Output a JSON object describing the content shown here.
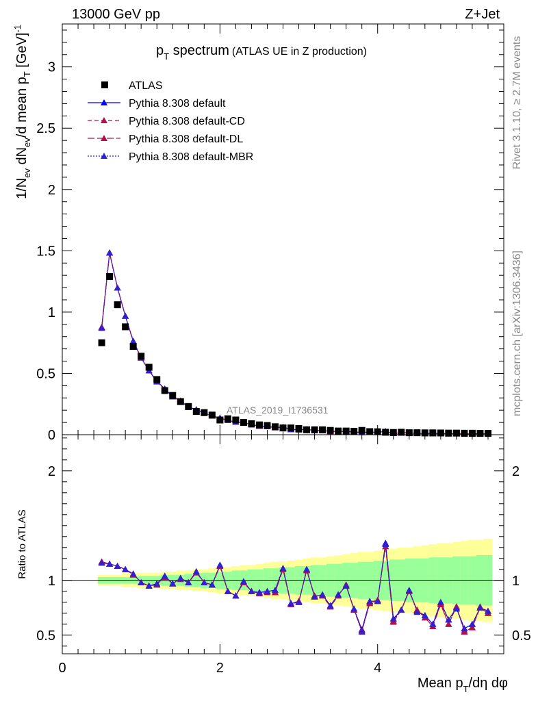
{
  "header": {
    "left": "13000 GeV pp",
    "right": "Z+Jet"
  },
  "side_labels": {
    "rivet": "Rivet 3.1.10, ≥ 2.7M events",
    "mcplots": "mcplots.cern.ch [arXiv:1306.3436]"
  },
  "chart_data": {
    "type": "scatter",
    "title_main": "p",
    "title_sub": "T",
    "title_rest": " spectrum",
    "title_paren": "(ATLAS UE in Z production)",
    "analysis_id": "ATLAS_2019_I1736531",
    "ylabel_upper": "1/N_ev dN_ev/d mean p_T [GeV]^-1",
    "ylabel_lower": "Ratio to ATLAS",
    "xlabel": "Mean p_T/dη dφ",
    "xlim": [
      0,
      5.6
    ],
    "ylim_upper": [
      0,
      3.35
    ],
    "ylim_lower": [
      0.33,
      2.33
    ],
    "x_ticks": [
      "0",
      "2",
      "4"
    ],
    "y_ticks_upper": [
      "0",
      "0.5",
      "1",
      "1.5",
      "2",
      "2.5",
      "3"
    ],
    "y_ticks_lower": [
      "0.5",
      "1",
      "2"
    ],
    "x": [
      0.5,
      0.6,
      0.7,
      0.8,
      0.9,
      1.0,
      1.1,
      1.2,
      1.3,
      1.4,
      1.5,
      1.6,
      1.7,
      1.8,
      1.9,
      2.0,
      2.1,
      2.2,
      2.3,
      2.4,
      2.5,
      2.6,
      2.7,
      2.8,
      2.9,
      3.0,
      3.1,
      3.2,
      3.3,
      3.4,
      3.5,
      3.6,
      3.7,
      3.8,
      3.9,
      4.0,
      4.1,
      4.2,
      4.3,
      4.4,
      4.5,
      4.6,
      4.7,
      4.8,
      4.9,
      5.0,
      5.1,
      5.2,
      5.3,
      5.4
    ],
    "atlas": [
      0.75,
      1.29,
      1.06,
      0.88,
      0.72,
      0.64,
      0.55,
      0.45,
      0.36,
      0.32,
      0.27,
      0.23,
      0.19,
      0.18,
      0.16,
      0.12,
      0.13,
      0.12,
      0.1,
      0.09,
      0.08,
      0.075,
      0.065,
      0.055,
      0.055,
      0.05,
      0.04,
      0.04,
      0.04,
      0.035,
      0.03,
      0.03,
      0.028,
      0.035,
      0.025,
      0.024,
      0.02,
      0.018,
      0.02,
      0.016,
      0.016,
      0.015,
      0.015,
      0.014,
      0.013,
      0.013,
      0.012,
      0.012,
      0.011,
      0.011
    ],
    "series": [
      {
        "name": "Pythia 8.308 default",
        "color": "#0000ee",
        "dash": "",
        "ratio": [
          1.16,
          1.15,
          1.13,
          1.1,
          1.06,
          0.98,
          0.95,
          0.97,
          1.04,
          0.97,
          1.02,
          0.98,
          1.08,
          0.98,
          0.96,
          1.14,
          0.9,
          0.86,
          0.99,
          0.9,
          0.89,
          0.9,
          0.91,
          1.11,
          0.79,
          0.8,
          1.1,
          0.85,
          0.87,
          0.77,
          0.87,
          0.95,
          0.74,
          0.55,
          0.81,
          0.81,
          1.34,
          0.65,
          0.73,
          0.91,
          0.72,
          0.68,
          0.6,
          0.8,
          0.64,
          0.75,
          0.56,
          0.6,
          0.75,
          0.72
        ]
      },
      {
        "name": "Pythia 8.308 default-CD",
        "color": "#b01050",
        "dash": "6,4",
        "ratio": [
          1.17,
          1.15,
          1.13,
          1.1,
          1.05,
          0.98,
          0.95,
          0.96,
          1.03,
          0.97,
          1.01,
          0.98,
          1.08,
          0.98,
          0.96,
          1.13,
          0.9,
          0.86,
          0.98,
          0.9,
          0.88,
          0.9,
          0.89,
          1.11,
          0.79,
          0.81,
          1.09,
          0.86,
          0.86,
          0.76,
          0.86,
          0.96,
          0.73,
          0.54,
          0.8,
          0.82,
          1.31,
          0.63,
          0.73,
          0.9,
          0.73,
          0.66,
          0.58,
          0.79,
          0.6,
          0.76,
          0.54,
          0.57,
          0.76,
          0.7
        ]
      },
      {
        "name": "Pythia 8.308 default-DL",
        "color": "#b01050",
        "dash": "10,4",
        "ratio": [
          1.17,
          1.15,
          1.13,
          1.1,
          1.06,
          0.98,
          0.95,
          0.96,
          1.03,
          0.97,
          1.02,
          0.98,
          1.07,
          0.98,
          0.96,
          1.13,
          0.9,
          0.86,
          0.98,
          0.9,
          0.88,
          0.89,
          0.89,
          1.1,
          0.78,
          0.81,
          1.09,
          0.86,
          0.86,
          0.76,
          0.86,
          0.96,
          0.73,
          0.54,
          0.79,
          0.82,
          1.31,
          0.62,
          0.73,
          0.9,
          0.73,
          0.66,
          0.58,
          0.78,
          0.6,
          0.76,
          0.53,
          0.57,
          0.75,
          0.7
        ]
      },
      {
        "name": "Pythia 8.308 default-MBR",
        "color": "#3020d0",
        "dash": "2,2",
        "ratio": [
          1.16,
          1.15,
          1.13,
          1.1,
          1.06,
          0.98,
          0.95,
          0.97,
          1.04,
          0.97,
          1.02,
          0.98,
          1.08,
          0.98,
          0.96,
          1.14,
          0.9,
          0.86,
          0.99,
          0.9,
          0.89,
          0.9,
          0.91,
          1.11,
          0.79,
          0.8,
          1.1,
          0.85,
          0.87,
          0.77,
          0.87,
          0.95,
          0.74,
          0.53,
          0.81,
          0.81,
          1.33,
          0.65,
          0.73,
          0.91,
          0.71,
          0.68,
          0.6,
          0.8,
          0.64,
          0.74,
          0.56,
          0.6,
          0.75,
          0.72
        ]
      }
    ],
    "legend_atlas": "ATLAS",
    "band_stat": [
      0.03,
      0.03,
      0.03,
      0.03,
      0.03,
      0.04,
      0.04,
      0.04,
      0.05,
      0.05,
      0.05,
      0.06,
      0.06,
      0.07,
      0.07,
      0.08,
      0.08,
      0.09,
      0.09,
      0.1,
      0.1,
      0.11,
      0.11,
      0.12,
      0.12,
      0.13,
      0.13,
      0.14,
      0.14,
      0.15,
      0.15,
      0.16,
      0.16,
      0.17,
      0.17,
      0.18,
      0.18,
      0.19,
      0.19,
      0.2,
      0.2,
      0.2,
      0.21,
      0.21,
      0.21,
      0.22,
      0.22,
      0.22,
      0.23,
      0.23
    ],
    "band_total": [
      0.05,
      0.05,
      0.05,
      0.06,
      0.06,
      0.07,
      0.07,
      0.07,
      0.08,
      0.08,
      0.09,
      0.09,
      0.1,
      0.1,
      0.11,
      0.12,
      0.12,
      0.13,
      0.14,
      0.14,
      0.15,
      0.16,
      0.17,
      0.17,
      0.18,
      0.19,
      0.2,
      0.21,
      0.21,
      0.22,
      0.23,
      0.24,
      0.25,
      0.26,
      0.26,
      0.27,
      0.28,
      0.29,
      0.3,
      0.3,
      0.31,
      0.32,
      0.33,
      0.34,
      0.34,
      0.35,
      0.36,
      0.37,
      0.37,
      0.38
    ],
    "band_colors": {
      "stat": "#99ff99",
      "total": "#ffff99"
    }
  }
}
